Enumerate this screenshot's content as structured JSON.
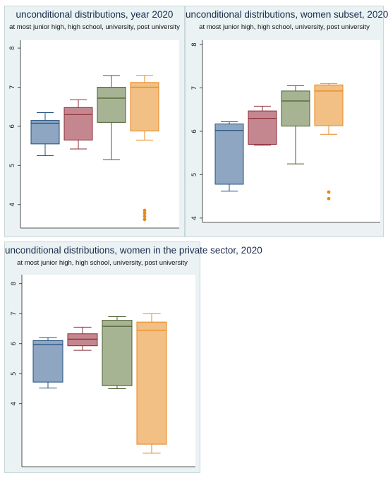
{
  "colors": {
    "panel_bg": "#eaf2f3",
    "plot_bg": "#ffffff",
    "axis": "#222222",
    "groups": [
      {
        "fill": "#8ea6c2",
        "stroke": "#23507e"
      },
      {
        "fill": "#c4878f",
        "stroke": "#8e2c37"
      },
      {
        "fill": "#a7b494",
        "stroke": "#4d5e2f"
      },
      {
        "fill": "#f2bf84",
        "stroke": "#e8871c"
      }
    ]
  },
  "panels": [
    {
      "title": "unconditional distributions, year 2020",
      "subtitle": "at most junior high, high school, university, post university"
    },
    {
      "title": "unconditional distributions, women subset, 2020",
      "subtitle": "at most junior high, high school, university, post university"
    },
    {
      "title": "unconditional distributions, women in the private sector, 2020",
      "subtitle": "at most junior high, high school, university, post university"
    }
  ],
  "chart_data": [
    {
      "type": "box",
      "title": "unconditional distributions, year 2020",
      "subtitle": "at most junior high, high school, university, post university",
      "y_ticks": [
        4,
        5,
        6,
        7,
        8
      ],
      "ylim": [
        3.4,
        8.2
      ],
      "grid": false,
      "boxes": [
        {
          "whisker_low": 5.25,
          "q1": 5.55,
          "median": 6.08,
          "q3": 6.15,
          "whisker_high": 6.35,
          "outliers": []
        },
        {
          "whisker_low": 5.42,
          "q1": 5.65,
          "median": 6.3,
          "q3": 6.48,
          "whisker_high": 6.68,
          "outliers": []
        },
        {
          "whisker_low": 5.15,
          "q1": 6.1,
          "median": 6.72,
          "q3": 7.0,
          "whisker_high": 7.3,
          "outliers": []
        },
        {
          "whisker_low": 5.65,
          "q1": 5.88,
          "median": 7.0,
          "q3": 7.12,
          "whisker_high": 7.3,
          "outliers": [
            3.62,
            3.7,
            3.78,
            3.85
          ]
        }
      ]
    },
    {
      "type": "box",
      "title": "unconditional distributions, women subset, 2020",
      "subtitle": "at most junior high, high school, university, post university",
      "y_ticks": [
        4,
        5,
        6,
        7,
        8
      ],
      "ylim": [
        3.9,
        8.1
      ],
      "grid": false,
      "boxes": [
        {
          "whisker_low": 4.62,
          "q1": 4.78,
          "median": 6.02,
          "q3": 6.17,
          "whisker_high": 6.22,
          "outliers": []
        },
        {
          "whisker_low": 5.68,
          "q1": 5.7,
          "median": 6.3,
          "q3": 6.47,
          "whisker_high": 6.58,
          "outliers": []
        },
        {
          "whisker_low": 5.25,
          "q1": 6.12,
          "median": 6.7,
          "q3": 6.93,
          "whisker_high": 7.05,
          "outliers": []
        },
        {
          "whisker_low": 5.93,
          "q1": 6.13,
          "median": 6.93,
          "q3": 7.07,
          "whisker_high": 7.1,
          "outliers": [
            4.45,
            4.6
          ]
        }
      ]
    },
    {
      "type": "box",
      "title": "unconditional distributions, women in the private sector, 2020",
      "subtitle": "at most junior high, high school, university, post university",
      "y_ticks": [
        4,
        5,
        6,
        7,
        8
      ],
      "ylim": [
        1.9,
        8.3
      ],
      "grid": false,
      "boxes": [
        {
          "whisker_low": 4.52,
          "q1": 4.72,
          "median": 5.97,
          "q3": 6.1,
          "whisker_high": 6.2,
          "outliers": []
        },
        {
          "whisker_low": 5.78,
          "q1": 5.93,
          "median": 6.15,
          "q3": 6.33,
          "whisker_high": 6.55,
          "outliers": []
        },
        {
          "whisker_low": 4.5,
          "q1": 4.6,
          "median": 6.58,
          "q3": 6.78,
          "whisker_high": 6.9,
          "outliers": []
        },
        {
          "whisker_low": 2.35,
          "q1": 2.65,
          "median": 6.45,
          "q3": 6.72,
          "whisker_high": 7.0,
          "outliers": []
        }
      ]
    }
  ]
}
